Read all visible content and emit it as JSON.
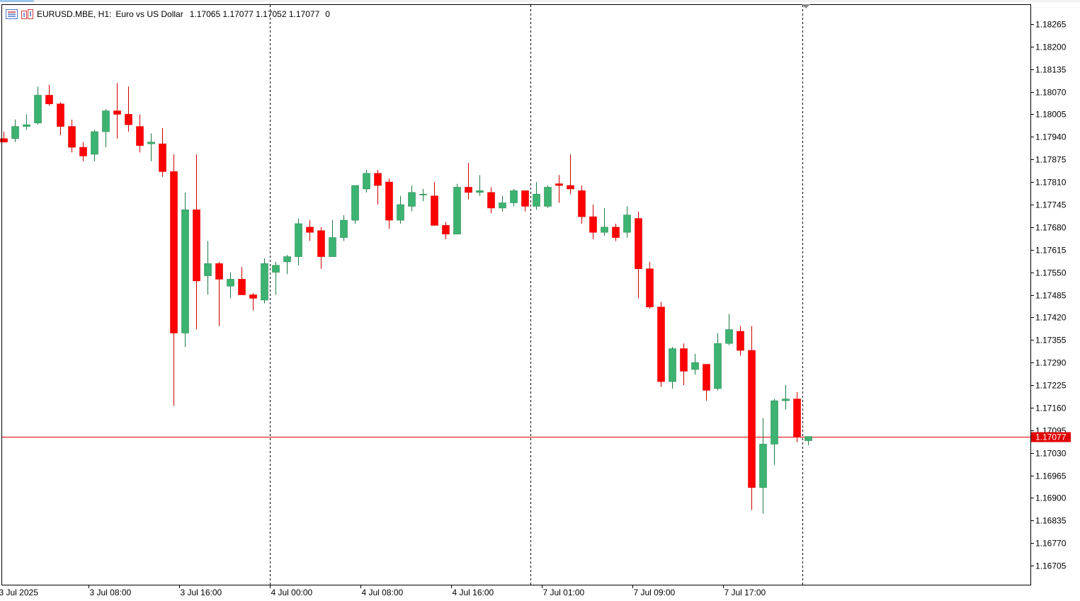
{
  "header": {
    "symbol": "EURUSD.MBE, H1:",
    "description": "Euro vs US Dollar",
    "ohlc": "1.17065 1.17077 1.17052 1.17077",
    "volume": "0",
    "icons": [
      "chart-settings-icon",
      "indicator-list-icon"
    ]
  },
  "colors": {
    "bull": "#3cb371",
    "bear": "#ff0000",
    "price_line": "#e00000",
    "separator": "#000000"
  },
  "chart_data": {
    "type": "candlestick",
    "symbol": "EURUSD.MBE",
    "timeframe": "H1",
    "ylim": [
      1.1665,
      1.1832
    ],
    "y_ticks": [
      "1.18265",
      "1.18200",
      "1.18135",
      "1.18070",
      "1.18005",
      "1.17940",
      "1.17875",
      "1.17810",
      "1.17745",
      "1.17680",
      "1.17615",
      "1.17550",
      "1.17485",
      "1.17420",
      "1.17355",
      "1.17290",
      "1.17225",
      "1.17160",
      "1.17095",
      "1.17030",
      "1.16965",
      "1.16900",
      "1.16835",
      "1.16770",
      "1.16705"
    ],
    "x_labels": [
      {
        "index": 0,
        "label": "3 Jul 2025"
      },
      {
        "index": 8,
        "label": "3 Jul 08:00"
      },
      {
        "index": 16,
        "label": "3 Jul 16:00"
      },
      {
        "index": 24,
        "label": "4 Jul 00:00"
      },
      {
        "index": 32,
        "label": "4 Jul 08:00"
      },
      {
        "index": 40,
        "label": "4 Jul 16:00"
      },
      {
        "index": 48,
        "label": "7 Jul 01:00"
      },
      {
        "index": 56,
        "label": "7 Jul 09:00"
      },
      {
        "index": 64,
        "label": "7 Jul 17:00"
      }
    ],
    "day_separators": [
      24,
      47,
      71
    ],
    "current_price": "1.17077",
    "candles": [
      [
        1.17935,
        1.17955,
        1.17925,
        1.17925
      ],
      [
        1.17935,
        1.1799,
        1.17925,
        1.1797
      ],
      [
        1.1797,
        1.18005,
        1.1796,
        1.17975
      ],
      [
        1.1798,
        1.18085,
        1.17975,
        1.1806
      ],
      [
        1.1806,
        1.1809,
        1.1803,
        1.18035
      ],
      [
        1.18035,
        1.1804,
        1.17945,
        1.1797
      ],
      [
        1.1797,
        1.1799,
        1.17895,
        1.1791
      ],
      [
        1.1791,
        1.17925,
        1.1787,
        1.17885
      ],
      [
        1.1789,
        1.1796,
        1.1787,
        1.17955
      ],
      [
        1.17955,
        1.1802,
        1.1791,
        1.18015
      ],
      [
        1.18015,
        1.18095,
        1.17935,
        1.18005
      ],
      [
        1.18005,
        1.18085,
        1.17955,
        1.17975
      ],
      [
        1.1797,
        1.18005,
        1.17895,
        1.17915
      ],
      [
        1.1792,
        1.1795,
        1.1787,
        1.17925
      ],
      [
        1.1792,
        1.17965,
        1.17825,
        1.1784
      ],
      [
        1.1784,
        1.1789,
        1.17165,
        1.17375
      ],
      [
        1.17375,
        1.1778,
        1.17335,
        1.1773
      ],
      [
        1.1773,
        1.1789,
        1.17385,
        1.17525
      ],
      [
        1.1754,
        1.1764,
        1.17485,
        1.17575
      ],
      [
        1.17575,
        1.1758,
        1.17395,
        1.1753
      ],
      [
        1.1751,
        1.1755,
        1.17475,
        1.1753
      ],
      [
        1.1753,
        1.17565,
        1.17485,
        1.17485
      ],
      [
        1.17485,
        1.1749,
        1.1744,
        1.17475
      ],
      [
        1.1747,
        1.1759,
        1.1746,
        1.17575
      ],
      [
        1.1755,
        1.1758,
        1.17485,
        1.1757
      ],
      [
        1.1758,
        1.176,
        1.17545,
        1.17595
      ],
      [
        1.17595,
        1.17705,
        1.1757,
        1.1769
      ],
      [
        1.1768,
        1.177,
        1.1764,
        1.17665
      ],
      [
        1.1767,
        1.1768,
        1.1756,
        1.17595
      ],
      [
        1.17595,
        1.177,
        1.17595,
        1.1765
      ],
      [
        1.1765,
        1.17715,
        1.1764,
        1.177
      ],
      [
        1.177,
        1.178,
        1.1769,
        1.178
      ],
      [
        1.1779,
        1.17845,
        1.1778,
        1.17835
      ],
      [
        1.17835,
        1.17845,
        1.17745,
        1.178
      ],
      [
        1.1781,
        1.1782,
        1.17675,
        1.177
      ],
      [
        1.177,
        1.1777,
        1.1769,
        1.17745
      ],
      [
        1.1774,
        1.178,
        1.17725,
        1.1778
      ],
      [
        1.17775,
        1.1779,
        1.17755,
        1.17775
      ],
      [
        1.1777,
        1.1781,
        1.1769,
        1.17685
      ],
      [
        1.17685,
        1.17695,
        1.17645,
        1.1766
      ],
      [
        1.1766,
        1.17805,
        1.1766,
        1.17795
      ],
      [
        1.17795,
        1.17865,
        1.1776,
        1.1778
      ],
      [
        1.1778,
        1.1783,
        1.1777,
        1.17785
      ],
      [
        1.1778,
        1.17795,
        1.1772,
        1.17735
      ],
      [
        1.17735,
        1.1777,
        1.17725,
        1.1775
      ],
      [
        1.1775,
        1.1779,
        1.1774,
        1.17785
      ],
      [
        1.17785,
        1.17785,
        1.17725,
        1.1774
      ],
      [
        1.1774,
        1.1781,
        1.1773,
        1.17775
      ],
      [
        1.1774,
        1.178,
        1.17735,
        1.17795
      ],
      [
        1.17805,
        1.1783,
        1.1775,
        1.178
      ],
      [
        1.178,
        1.1789,
        1.17775,
        1.1779
      ],
      [
        1.17785,
        1.178,
        1.1769,
        1.1771
      ],
      [
        1.1771,
        1.17745,
        1.17645,
        1.17665
      ],
      [
        1.17665,
        1.17735,
        1.17655,
        1.1768
      ],
      [
        1.1768,
        1.1769,
        1.1764,
        1.1765
      ],
      [
        1.17665,
        1.1774,
        1.1765,
        1.17715
      ],
      [
        1.17705,
        1.17725,
        1.17475,
        1.1756
      ],
      [
        1.1756,
        1.1758,
        1.17445,
        1.1745
      ],
      [
        1.1745,
        1.17465,
        1.1722,
        1.17235
      ],
      [
        1.17235,
        1.17335,
        1.17215,
        1.1733
      ],
      [
        1.1733,
        1.17345,
        1.17225,
        1.17265
      ],
      [
        1.1727,
        1.17315,
        1.17255,
        1.1729
      ],
      [
        1.17285,
        1.17285,
        1.1718,
        1.1721
      ],
      [
        1.17215,
        1.17375,
        1.1721,
        1.17345
      ],
      [
        1.17345,
        1.1743,
        1.1734,
        1.17385
      ],
      [
        1.1738,
        1.17395,
        1.1731,
        1.17325
      ],
      [
        1.17325,
        1.17395,
        1.16865,
        1.1693
      ],
      [
        1.1693,
        1.1713,
        1.16855,
        1.17055
      ],
      [
        1.17055,
        1.17185,
        1.16995,
        1.1718
      ],
      [
        1.1718,
        1.17225,
        1.17155,
        1.17185
      ],
      [
        1.17185,
        1.17205,
        1.1706,
        1.17075
      ],
      [
        1.17065,
        1.17077,
        1.17052,
        1.17077
      ]
    ]
  }
}
